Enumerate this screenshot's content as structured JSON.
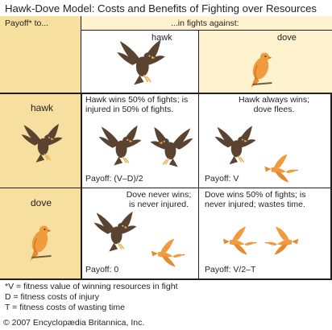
{
  "title": "Hawk-Dove Model: Costs and Benefits of Fighting over Resources",
  "header": {
    "payoff_to": "Payoff* to...",
    "in_fights_against": "...in fights against:"
  },
  "columns": {
    "hawk": "hawk",
    "dove": "dove"
  },
  "rows": {
    "hawk": "hawk",
    "dove": "dove"
  },
  "cells": {
    "hawk_hawk": {
      "text": "Hawk wins 50% of fights; is injured in 50% of fights.",
      "payoff": "Payoff: (V–D)/2"
    },
    "hawk_dove": {
      "text": "Hawk always wins; dove flees.",
      "payoff": "Payoff: V"
    },
    "dove_hawk": {
      "text": "Dove never wins; is never injured.",
      "payoff": "Payoff: 0"
    },
    "dove_dove": {
      "text": "Dove wins 50% of fights; is never injured; wastes time.",
      "payoff": "Payoff: V/2–T"
    }
  },
  "notes": [
    "*V = fitness value of winning resources in fight",
    "D = fitness costs of injury",
    "T = fitness costs of wasting time"
  ],
  "copyright": "© 2007 Encyclopædia Britannica, Inc.",
  "colors": {
    "hawk": "#5a4330",
    "dove": "#f19a3e",
    "tan": "#f7df9f",
    "cream": "#fff3cf"
  }
}
